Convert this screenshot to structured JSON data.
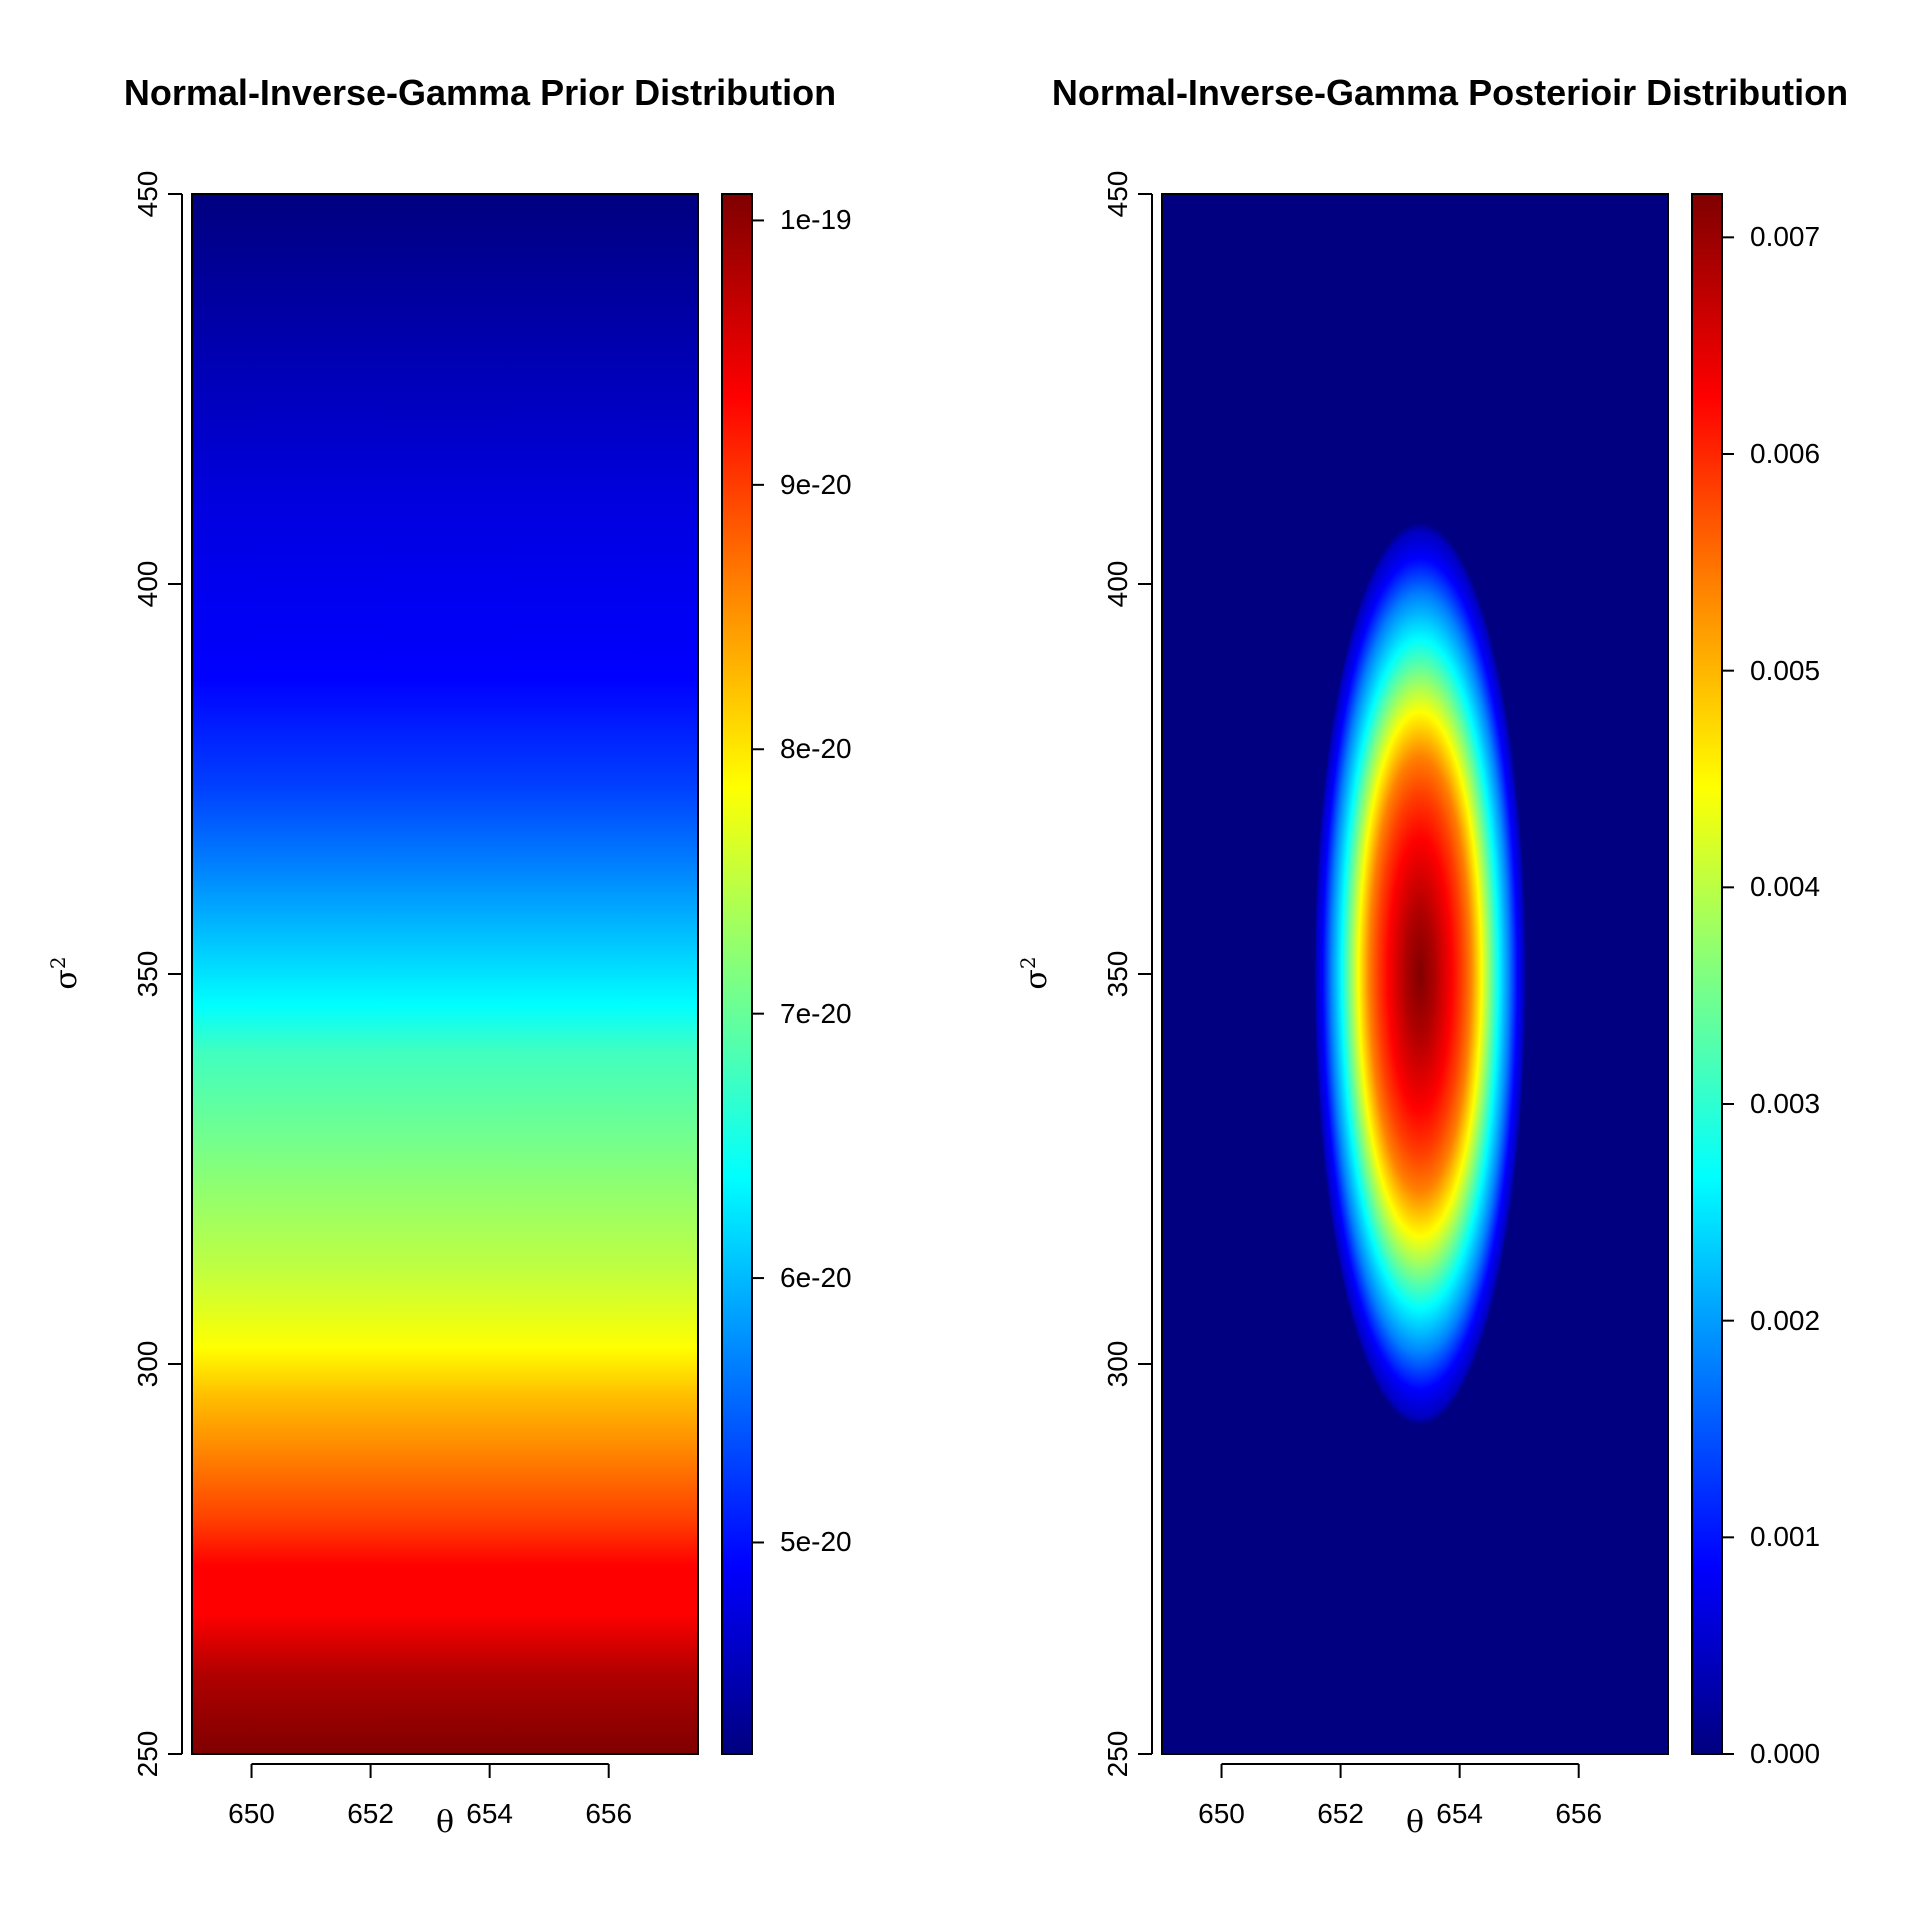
{
  "chart_data": [
    {
      "type": "heatmap",
      "title": "Normal-Inverse-Gamma Prior Distribution",
      "xlabel": "θ",
      "ylabel": "σ",
      "ylabel_sup": "2",
      "xlim": [
        649,
        657.5
      ],
      "ylim": [
        250,
        450
      ],
      "x_ticks": [
        650,
        652,
        654,
        656
      ],
      "y_ticks": [
        250,
        300,
        350,
        400,
        450
      ],
      "colorbar": {
        "range": [
          4.2e-20,
          1.01e-19
        ],
        "ticks": [
          5e-20,
          6e-20,
          7e-20,
          8e-20,
          9e-20,
          1e-19
        ],
        "tick_labels": [
          "5e-20",
          "6e-20",
          "7e-20",
          "8e-20",
          "9e-20",
          "1e-19"
        ]
      },
      "colormap": "jet",
      "pattern": "density varies only with sigma^2, maximum at sigma^2 = 250 and decreasing toward 450"
    },
    {
      "type": "heatmap",
      "title": "Normal-Inverse-Gamma Posterioir Distribution",
      "xlabel": "θ",
      "ylabel": "σ",
      "ylabel_sup": "2",
      "xlim": [
        649,
        657.5
      ],
      "ylim": [
        250,
        450
      ],
      "x_ticks": [
        650,
        652,
        654,
        656
      ],
      "y_ticks": [
        250,
        300,
        350,
        400,
        450
      ],
      "colorbar": {
        "range": [
          0,
          0.0072
        ],
        "ticks": [
          0,
          0.001,
          0.002,
          0.003,
          0.004,
          0.005,
          0.006,
          0.007
        ],
        "tick_labels": [
          "0.000",
          "0.001",
          "0.002",
          "0.003",
          "0.004",
          "0.005",
          "0.006",
          "0.007"
        ]
      },
      "colormap": "jet",
      "peak": {
        "theta": 653.4,
        "sigma2": 350,
        "value": 0.0072
      }
    }
  ],
  "colors": {
    "jet": [
      "#000080",
      "#0000ff",
      "#0080ff",
      "#00ffff",
      "#80ff80",
      "#ffff00",
      "#ff8000",
      "#ff0000",
      "#800000"
    ]
  }
}
